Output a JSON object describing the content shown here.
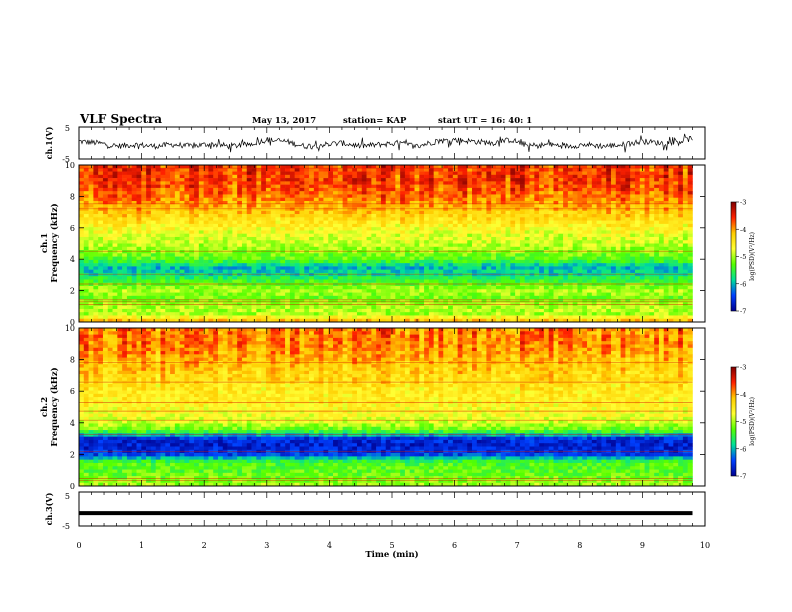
{
  "header": {
    "title": "VLF Spectra",
    "date": "May 13, 2017",
    "station": "station= KAP",
    "start": "start  UT =   16: 40: 1"
  },
  "colorbar": {
    "label": "log(PSD)(V²/Hz)",
    "ticks": [
      "-3",
      "-4",
      "-5",
      "-6",
      "-7"
    ],
    "stops": [
      "#7f0000",
      "#ff2000",
      "#ffcc00",
      "#ffff33",
      "#55ff00",
      "#00e09a",
      "#0040ff",
      "#00008f"
    ]
  },
  "chart_data": [
    {
      "type": "line",
      "ylabel": "ch.1(V)",
      "ylim": [
        -5,
        5
      ],
      "yticks": [
        "5",
        "-5"
      ],
      "x_range": [
        0,
        9.8
      ],
      "series": [
        {
          "x": [
            0,
            0.3,
            0.6,
            0.9,
            1.2,
            1.5,
            1.8,
            2.1,
            2.4,
            2.7,
            3.0,
            3.3,
            3.6,
            3.9,
            4.2,
            4.5,
            4.8,
            5.1,
            5.4,
            5.7,
            6.0,
            6.3,
            6.6,
            6.9,
            7.2,
            7.5,
            7.8,
            8.1,
            8.4,
            8.7,
            9.0,
            9.3,
            9.6,
            9.8
          ],
          "values": [
            0.5,
            0.0,
            -1.0,
            -0.5,
            -1.0,
            -0.5,
            -1.0,
            -0.3,
            -1.0,
            -0.5,
            1.0,
            0.5,
            -1.0,
            -0.5,
            0.0,
            -1.0,
            -0.5,
            0.0,
            -1.0,
            0.5,
            1.0,
            0.5,
            0.0,
            1.0,
            -1.0,
            -0.5,
            -1.0,
            -0.5,
            -1.0,
            -0.5,
            0.5,
            0.0,
            0.5,
            1.5
          ]
        }
      ]
    },
    {
      "type": "heatmap",
      "ylabel": "ch.1\nFrequency (kHz)",
      "ylim": [
        0,
        10
      ],
      "yticks": [
        "0",
        "2",
        "4",
        "6",
        "8",
        "10"
      ],
      "value_range": [
        -7,
        -3
      ],
      "freq_khz": [
        0,
        0.5,
        1,
        1.5,
        2,
        2.5,
        3,
        3.5,
        4,
        4.5,
        5,
        5.5,
        6,
        6.5,
        7,
        7.5,
        8,
        8.5,
        9,
        9.5,
        10
      ],
      "mean_log_psd": [
        -4.0,
        -5.0,
        -5.0,
        -5.2,
        -5.0,
        -5.3,
        -5.8,
        -6.0,
        -5.3,
        -5.1,
        -4.9,
        -4.8,
        -4.6,
        -4.4,
        -4.2,
        -4.0,
        -3.8,
        -3.7,
        -3.6,
        -3.6,
        -3.6
      ]
    },
    {
      "type": "heatmap",
      "ylabel": "ch.2\nFrequency (kHz)",
      "ylim": [
        0,
        10
      ],
      "yticks": [
        "0",
        "2",
        "4",
        "6",
        "8",
        "10"
      ],
      "value_range": [
        -7,
        -3
      ],
      "freq_khz": [
        0,
        0.5,
        1,
        1.5,
        2,
        2.5,
        3,
        3.5,
        4,
        4.5,
        5,
        5.5,
        6,
        6.5,
        7,
        7.5,
        8,
        8.5,
        9,
        9.5,
        10
      ],
      "mean_log_psd": [
        -5.0,
        -5.2,
        -5.3,
        -5.4,
        -6.5,
        -6.7,
        -6.6,
        -5.3,
        -4.9,
        -4.7,
        -4.6,
        -4.5,
        -4.5,
        -4.4,
        -4.3,
        -4.2,
        -4.1,
        -4.0,
        -3.9,
        -3.9,
        -3.9
      ]
    },
    {
      "type": "line",
      "ylabel": "ch.3(V)",
      "ylim": [
        -5,
        5
      ],
      "yticks": [
        "5",
        "-5"
      ],
      "x_range": [
        0,
        9.8
      ],
      "series": [
        {
          "x": [
            0,
            9.8
          ],
          "values": [
            -1.2,
            -1.2
          ]
        }
      ]
    }
  ],
  "xaxis": {
    "label": "Time (min)",
    "range": [
      0,
      10
    ],
    "ticks": [
      "0",
      "1",
      "2",
      "3",
      "4",
      "5",
      "6",
      "7",
      "8",
      "9",
      "10"
    ]
  }
}
